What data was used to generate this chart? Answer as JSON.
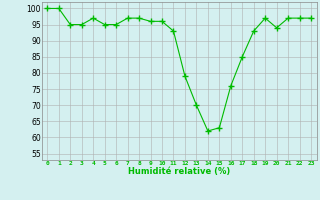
{
  "x": [
    0,
    1,
    2,
    3,
    4,
    5,
    6,
    7,
    8,
    9,
    10,
    11,
    12,
    13,
    14,
    15,
    16,
    17,
    18,
    19,
    20,
    21,
    22,
    23
  ],
  "y": [
    100,
    100,
    95,
    95,
    97,
    95,
    95,
    97,
    97,
    96,
    96,
    93,
    79,
    70,
    62,
    63,
    76,
    85,
    93,
    97,
    94,
    97,
    97,
    97
  ],
  "line_color": "#00bb00",
  "marker_color": "#00bb00",
  "bg_color": "#d4f0f0",
  "grid_color": "#b0b0b0",
  "xlabel": "Humidité relative (%)",
  "xlabel_color": "#00bb00",
  "ylabel_ticks": [
    55,
    60,
    65,
    70,
    75,
    80,
    85,
    90,
    95,
    100
  ],
  "xlim": [
    -0.5,
    23.5
  ],
  "ylim": [
    53,
    102
  ],
  "xtick_labels": [
    "0",
    "1",
    "2",
    "3",
    "4",
    "5",
    "6",
    "7",
    "8",
    "9",
    "10",
    "11",
    "12",
    "13",
    "14",
    "15",
    "16",
    "17",
    "18",
    "19",
    "20",
    "21",
    "22",
    "23"
  ]
}
